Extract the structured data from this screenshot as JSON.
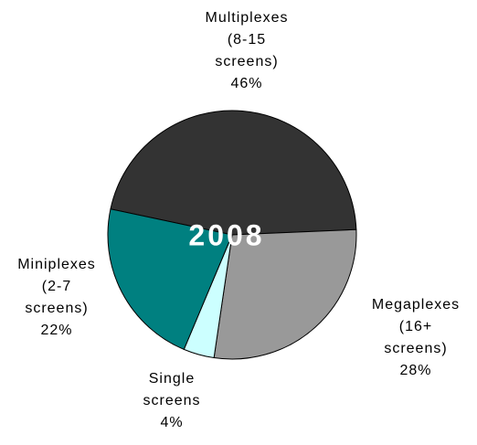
{
  "chart_data": {
    "type": "pie",
    "title": "2008",
    "categories": [
      "Multiplexes\n(8-15\nscreens)",
      "Megaplexes\n(16+\nscreens)",
      "Single\nscreens",
      "Miniplexes\n(2-7\nscreens)"
    ],
    "values": [
      46,
      28,
      4,
      22
    ],
    "value_labels": [
      "46%",
      "28%",
      "4%",
      "22%"
    ],
    "colors": [
      "#333333",
      "#999999",
      "#ccffff",
      "#008080"
    ]
  }
}
